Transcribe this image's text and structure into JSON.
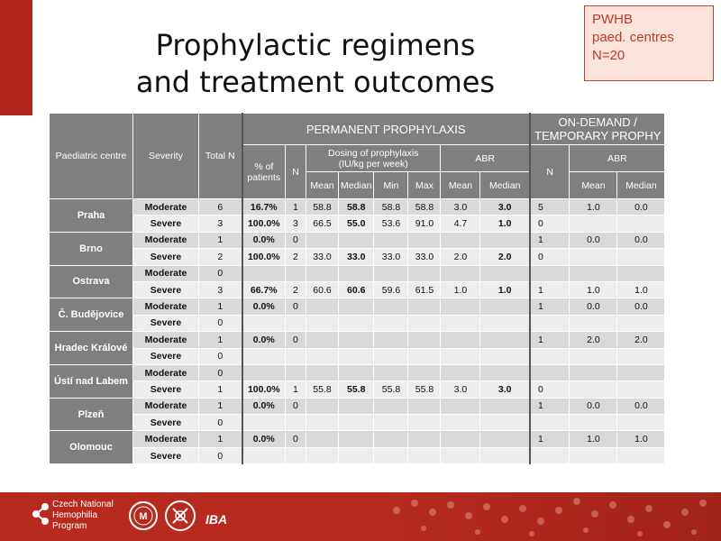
{
  "title_line1": "Prophylactic regimens",
  "title_line2": "and treatment outcomes",
  "badge": {
    "line1": "PWHB",
    "line2": "paed. centres",
    "line3": "N=20"
  },
  "headers": {
    "centre": "Paediatric centre",
    "severity": "Severity",
    "total": "Total N",
    "permanent": "PERMANENT PROPHYLAXIS",
    "ondemand_1": "ON-DEMAND /",
    "ondemand_2": "TEMPORARY PROPHY",
    "pct": "% of patients",
    "n": "N",
    "dosing_1": "Dosing of prophylaxis",
    "dosing_2": "(IU/kg per week)",
    "abr": "ABR",
    "od_n": "N",
    "od_abr": "ABR",
    "mean": "Mean",
    "median": "Median",
    "min": "Min",
    "max": "Max"
  },
  "centres": [
    {
      "name": "Praha",
      "rows": [
        [
          "Moderate",
          "6",
          "16.7%",
          "1",
          "58.8",
          "58.8",
          "58.8",
          "58.8",
          "3.0",
          "3.0",
          "5",
          "1.0",
          "0.0"
        ],
        [
          "Severe",
          "3",
          "100.0%",
          "3",
          "66.5",
          "55.0",
          "53.6",
          "91.0",
          "4.7",
          "1.0",
          "0",
          "",
          ""
        ]
      ]
    },
    {
      "name": "Brno",
      "rows": [
        [
          "Moderate",
          "1",
          "0.0%",
          "0",
          "",
          "",
          "",
          "",
          "",
          "",
          "1",
          "0.0",
          "0.0"
        ],
        [
          "Severe",
          "2",
          "100.0%",
          "2",
          "33.0",
          "33.0",
          "33.0",
          "33.0",
          "2.0",
          "2.0",
          "0",
          "",
          ""
        ]
      ]
    },
    {
      "name": "Ostrava",
      "rows": [
        [
          "Moderate",
          "0",
          "",
          "",
          "",
          "",
          "",
          "",
          "",
          "",
          "",
          "",
          ""
        ],
        [
          "Severe",
          "3",
          "66.7%",
          "2",
          "60.6",
          "60.6",
          "59.6",
          "61.5",
          "1.0",
          "1.0",
          "1",
          "1.0",
          "1.0"
        ]
      ]
    },
    {
      "name": "Č. Budějovice",
      "rows": [
        [
          "Moderate",
          "1",
          "0.0%",
          "0",
          "",
          "",
          "",
          "",
          "",
          "",
          "1",
          "0.0",
          "0.0"
        ],
        [
          "Severe",
          "0",
          "",
          "",
          "",
          "",
          "",
          "",
          "",
          "",
          "",
          "",
          ""
        ]
      ]
    },
    {
      "name": "Hradec Králové",
      "rows": [
        [
          "Moderate",
          "1",
          "0.0%",
          "0",
          "",
          "",
          "",
          "",
          "",
          "",
          "1",
          "2.0",
          "2.0"
        ],
        [
          "Severe",
          "0",
          "",
          "",
          "",
          "",
          "",
          "",
          "",
          "",
          "",
          "",
          ""
        ]
      ]
    },
    {
      "name": "Ústí nad Labem",
      "rows": [
        [
          "Moderate",
          "0",
          "",
          "",
          "",
          "",
          "",
          "",
          "",
          "",
          "",
          "",
          ""
        ],
        [
          "Severe",
          "1",
          "100.0%",
          "1",
          "55.8",
          "55.8",
          "55.8",
          "55.8",
          "3.0",
          "3.0",
          "0",
          "",
          ""
        ]
      ]
    },
    {
      "name": "Plzeň",
      "rows": [
        [
          "Moderate",
          "1",
          "0.0%",
          "0",
          "",
          "",
          "",
          "",
          "",
          "",
          "1",
          "0.0",
          "0.0"
        ],
        [
          "Severe",
          "0",
          "",
          "",
          "",
          "",
          "",
          "",
          "",
          "",
          "",
          "",
          ""
        ]
      ]
    },
    {
      "name": "Olomouc",
      "rows": [
        [
          "Moderate",
          "1",
          "0.0%",
          "0",
          "",
          "",
          "",
          "",
          "",
          "",
          "1",
          "1.0",
          "1.0"
        ],
        [
          "Severe",
          "0",
          "",
          "",
          "",
          "",
          "",
          "",
          "",
          "",
          "",
          "",
          ""
        ]
      ]
    }
  ],
  "footer": {
    "line1": "Czech National",
    "line2": "Hemophilia",
    "line3": "Program",
    "iba": "IBA"
  },
  "colors": {
    "accent": "#b3241c",
    "header_gray": "#7f7f7f",
    "row_light": "#ededed",
    "row_dark": "#d9d9d9"
  }
}
